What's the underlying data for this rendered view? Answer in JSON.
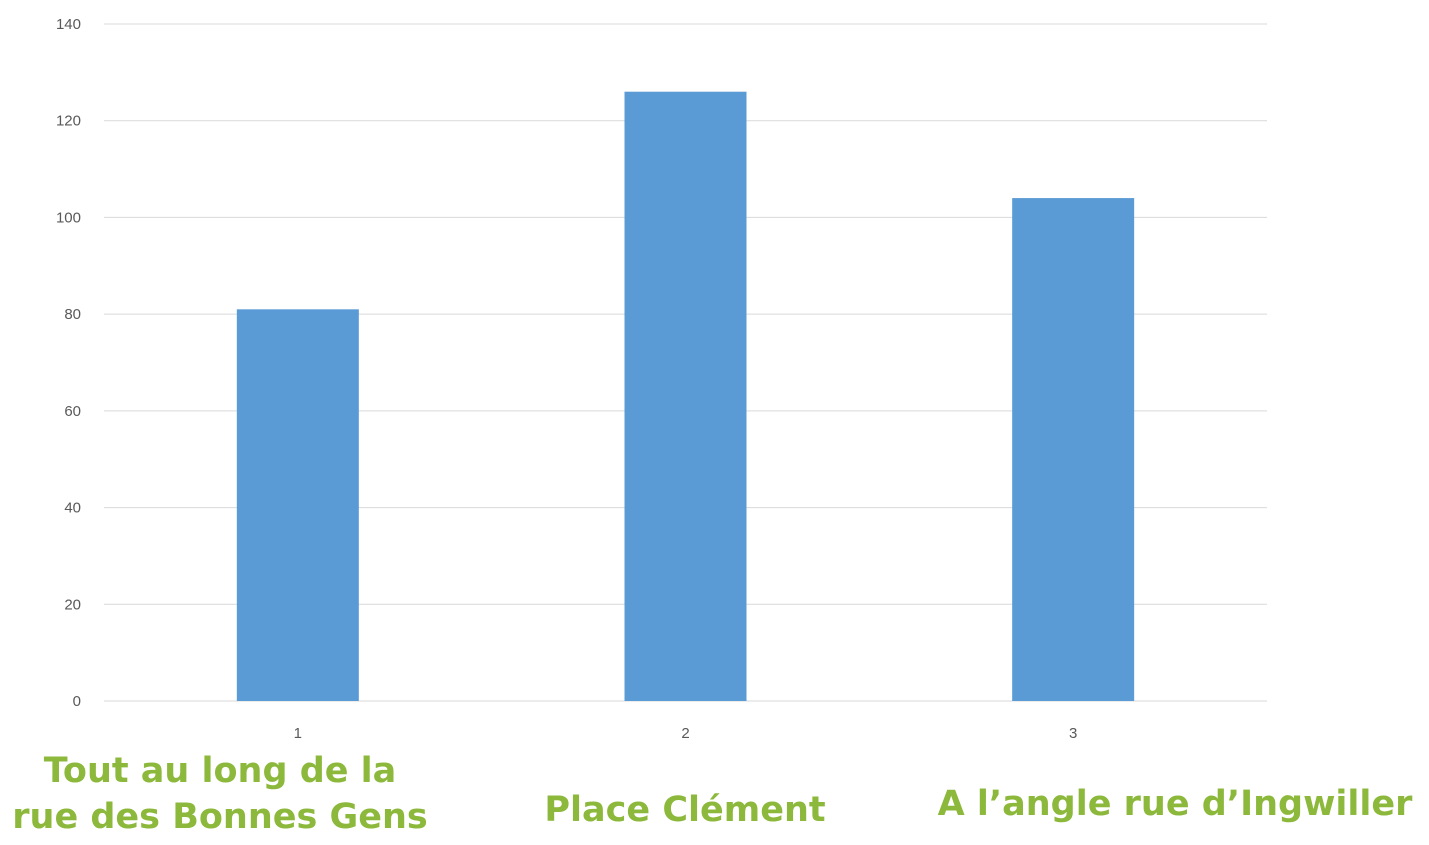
{
  "chart_data": {
    "type": "bar",
    "categories": [
      "1",
      "2",
      "3"
    ],
    "values": [
      81,
      126,
      104
    ],
    "ylim": [
      0,
      140
    ],
    "yticks": [
      0,
      20,
      40,
      60,
      80,
      100,
      120,
      140
    ],
    "grid": true,
    "legend": "none",
    "title": "",
    "xlabel": "",
    "ylabel": "",
    "bar_color": "#5b9bd5"
  },
  "location_labels": [
    {
      "line1": "Tout au long de la",
      "line2": "rue des Bonnes Gens"
    },
    {
      "line1": "Place Clément"
    },
    {
      "line1": "A l’angle rue d’Ingwiller"
    }
  ],
  "label_color": "#8cb83c"
}
